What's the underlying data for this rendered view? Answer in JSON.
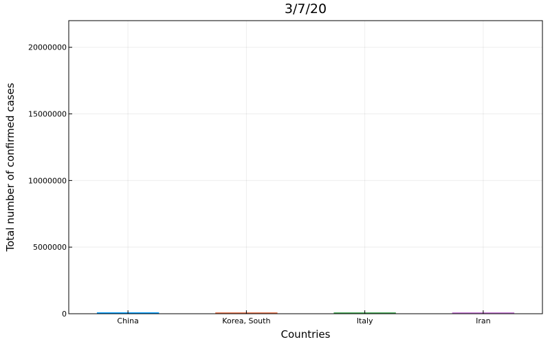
{
  "chart_data": {
    "type": "bar",
    "title": "3/7/20",
    "xlabel": "Countries",
    "ylabel": "Total number of confirmed cases",
    "categories": [
      "China",
      "Korea, South",
      "Italy",
      "Iran"
    ],
    "values": [
      80700,
      7041,
      5883,
      5823
    ],
    "colors": [
      "#009AFA",
      "#E36F47",
      "#3EA44E",
      "#C371D2"
    ],
    "ylim": [
      0,
      22000000
    ],
    "yticks": [
      0,
      5000000,
      10000000,
      15000000,
      20000000
    ],
    "ytick_labels": [
      "0",
      "5000000",
      "10000000",
      "15000000",
      "20000000"
    ],
    "grid": true,
    "legend": "none"
  }
}
